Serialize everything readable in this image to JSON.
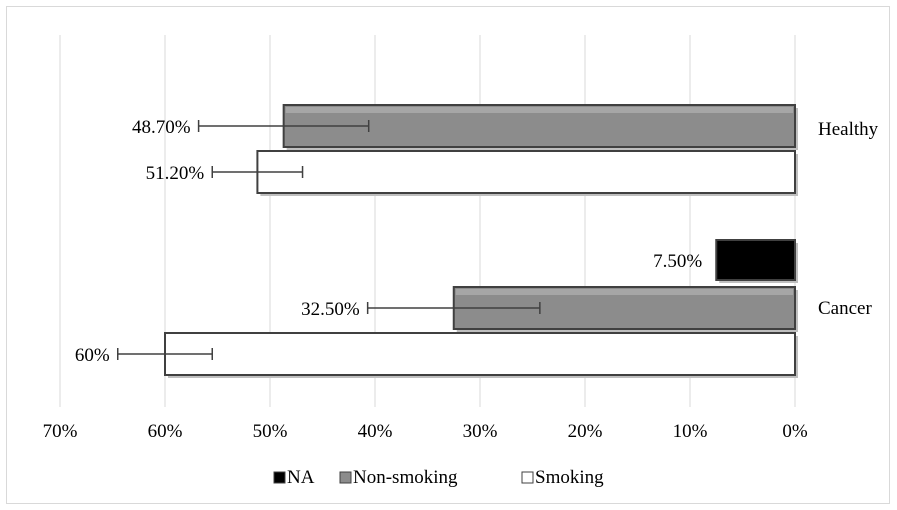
{
  "chart_data": {
    "type": "bar",
    "orientation": "horizontal",
    "x_reversed": true,
    "xlim": [
      0,
      70
    ],
    "x_ticks": [
      70,
      60,
      50,
      40,
      30,
      20,
      10,
      0
    ],
    "x_tick_labels": [
      "70%",
      "60%",
      "50%",
      "40%",
      "30%",
      "20%",
      "10%",
      "0%"
    ],
    "grid": "vertical",
    "legend_position": "bottom",
    "categories": [
      "Healthy",
      "Cancer"
    ],
    "series": [
      {
        "name": "NA",
        "color": "#000000",
        "values": [
          null,
          7.5
        ],
        "labels": [
          "",
          "7.50%"
        ],
        "error_minus": [
          null,
          null
        ],
        "error_plus": [
          null,
          null
        ]
      },
      {
        "name": "Non-smoking",
        "color": "#8c8c8c",
        "values": [
          48.7,
          32.5
        ],
        "labels": [
          "48.70%",
          "32.50%"
        ],
        "error_minus": [
          8.1,
          8.2
        ],
        "error_plus": [
          8.1,
          8.2
        ]
      },
      {
        "name": "Smoking",
        "color": "#ffffff",
        "values": [
          51.2,
          60
        ],
        "labels": [
          "51.20%",
          "60%"
        ],
        "error_minus": [
          4.3,
          4.5
        ],
        "error_plus": [
          4.3,
          4.5
        ]
      }
    ]
  }
}
